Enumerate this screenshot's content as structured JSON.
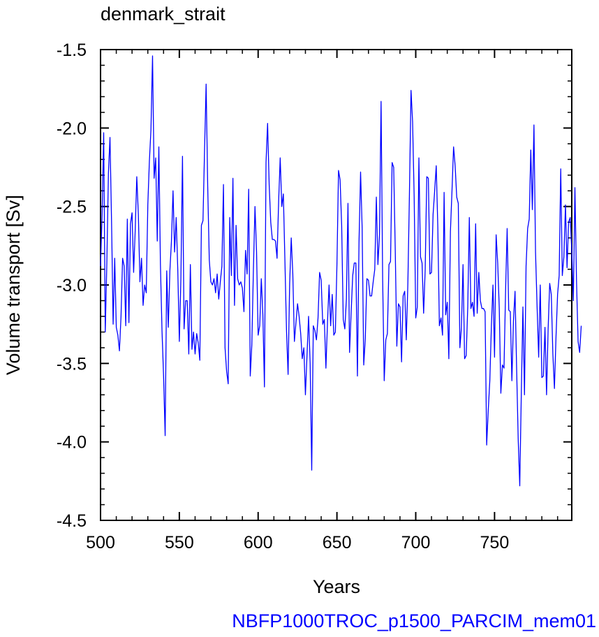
{
  "chart_data": {
    "type": "line",
    "title": "denmark_strait",
    "xlabel": "Years",
    "ylabel": "Volume transport [Sv]",
    "xlim": [
      500,
      799
    ],
    "ylim": [
      -4.5,
      -1.5
    ],
    "x_ticks": [
      500,
      550,
      600,
      650,
      700,
      750
    ],
    "x_tick_labels": [
      "500",
      "550",
      "600",
      "650",
      "700",
      "750"
    ],
    "y_ticks": [
      -4.5,
      -4.0,
      -3.5,
      -3.0,
      -2.5,
      -2.0,
      -1.5
    ],
    "y_tick_labels": [
      "-4.5",
      "-4.0",
      "-3.5",
      "-3.0",
      "-2.5",
      "-2.0",
      "-1.5"
    ],
    "grid": false,
    "line_color": "#0000ff",
    "series": [
      {
        "x_start": 500,
        "x_step": 1,
        "values": [
          -2.88,
          -2.55,
          -2.03,
          -3.3,
          -2.86,
          -2.29,
          -2.06,
          -2.6,
          -3.25,
          -2.83,
          -3.27,
          -3.32,
          -3.42,
          -3.2,
          -2.83,
          -2.88,
          -3.26,
          -2.58,
          -3.24,
          -2.61,
          -2.54,
          -2.92,
          -2.65,
          -2.31,
          -2.55,
          -2.98,
          -2.83,
          -3.13,
          -3.0,
          -3.05,
          -2.49,
          -2.21,
          -2.01,
          -1.54,
          -2.32,
          -2.19,
          -2.72,
          -2.12,
          -2.87,
          -3.29,
          -3.58,
          -3.96,
          -2.91,
          -3.27,
          -2.91,
          -2.72,
          -2.4,
          -2.79,
          -2.57,
          -2.9,
          -3.36,
          -2.96,
          -2.18,
          -3.28,
          -3.1,
          -3.1,
          -3.44,
          -2.87,
          -3.41,
          -3.3,
          -3.44,
          -3.31,
          -3.37,
          -3.48,
          -2.62,
          -2.59,
          -2.14,
          -1.72,
          -2.37,
          -2.84,
          -2.98,
          -3.0,
          -2.96,
          -3.05,
          -2.93,
          -3.09,
          -2.98,
          -2.88,
          -2.36,
          -3.4,
          -3.55,
          -3.63,
          -2.57,
          -2.94,
          -2.32,
          -3.13,
          -2.62,
          -2.96,
          -3.0,
          -2.98,
          -3.02,
          -3.17,
          -2.78,
          -2.93,
          -2.39,
          -3.58,
          -3.38,
          -2.9,
          -2.5,
          -2.79,
          -3.32,
          -3.26,
          -2.96,
          -3.19,
          -3.65,
          -2.22,
          -1.97,
          -2.36,
          -2.6,
          -2.71,
          -2.71,
          -2.72,
          -2.83,
          -2.47,
          -2.19,
          -2.5,
          -2.42,
          -2.85,
          -3.29,
          -3.57,
          -2.99,
          -2.7,
          -2.93,
          -3.36,
          -3.24,
          -3.12,
          -3.2,
          -3.31,
          -3.47,
          -3.4,
          -3.7,
          -3.45,
          -3.2,
          -3.5,
          -4.18,
          -3.26,
          -3.29,
          -3.35,
          -3.21,
          -2.92,
          -2.97,
          -3.25,
          -3.22,
          -3.53,
          -3.24,
          -3.0,
          -3.26,
          -3.06,
          -3.32,
          -3.3,
          -2.87,
          -2.27,
          -2.33,
          -2.62,
          -3.22,
          -3.28,
          -3.09,
          -2.48,
          -3.43,
          -3.18,
          -2.94,
          -2.86,
          -2.86,
          -3.58,
          -2.73,
          -2.28,
          -2.64,
          -3.51,
          -3.34,
          -2.96,
          -2.97,
          -3.07,
          -3.07,
          -2.98,
          -2.9,
          -2.44,
          -2.87,
          -2.68,
          -1.83,
          -2.96,
          -3.61,
          -3.35,
          -3.31,
          -2.87,
          -2.85,
          -2.22,
          -2.25,
          -2.78,
          -3.39,
          -3.12,
          -3.14,
          -3.49,
          -3.07,
          -3.04,
          -3.35,
          -2.99,
          -2.42,
          -1.76,
          -1.96,
          -2.44,
          -3.21,
          -3.14,
          -2.19,
          -2.82,
          -2.86,
          -3.18,
          -2.9,
          -2.31,
          -2.32,
          -2.93,
          -2.92,
          -2.55,
          -2.4,
          -2.24,
          -2.63,
          -3.26,
          -3.21,
          -3.32,
          -2.41,
          -3.19,
          -3.11,
          -3.47,
          -2.66,
          -2.4,
          -2.12,
          -2.24,
          -2.44,
          -2.48,
          -3.4,
          -3.27,
          -2.87,
          -3.47,
          -3.45,
          -3.14,
          -2.57,
          -3.15,
          -3.11,
          -3.2,
          -2.61,
          -3.18,
          -2.92,
          -3.1,
          -3.15,
          -3.15,
          -3.17,
          -4.02,
          -3.8,
          -3.61,
          -3.26,
          -3.0,
          -3.46,
          -2.68,
          -2.86,
          -3.15,
          -3.69,
          -3.51,
          -3.53,
          -3.04,
          -2.64,
          -3.16,
          -3.17,
          -3.61,
          -3.23,
          -3.04,
          -3.53,
          -3.98,
          -4.28,
          -3.68,
          -3.14,
          -3.7,
          -2.88,
          -2.64,
          -2.58,
          -2.14,
          -2.52,
          -1.98,
          -2.79,
          -3.14,
          -3.46,
          -3.0,
          -3.59,
          -3.58,
          -3.27,
          -3.7,
          -3.28,
          -2.99,
          -3.06,
          -3.44,
          -3.66,
          -3.33,
          -3.06,
          -2.94,
          -2.26,
          -2.94,
          -2.82,
          -2.49,
          -2.89,
          -2.6,
          -2.57,
          -2.78,
          -3.1,
          -2.38,
          -2.97,
          -3.36,
          -3.43,
          -3.26
        ]
      }
    ]
  },
  "footer_label": "NBFP1000TROC_p1500_PARCIM_mem01"
}
